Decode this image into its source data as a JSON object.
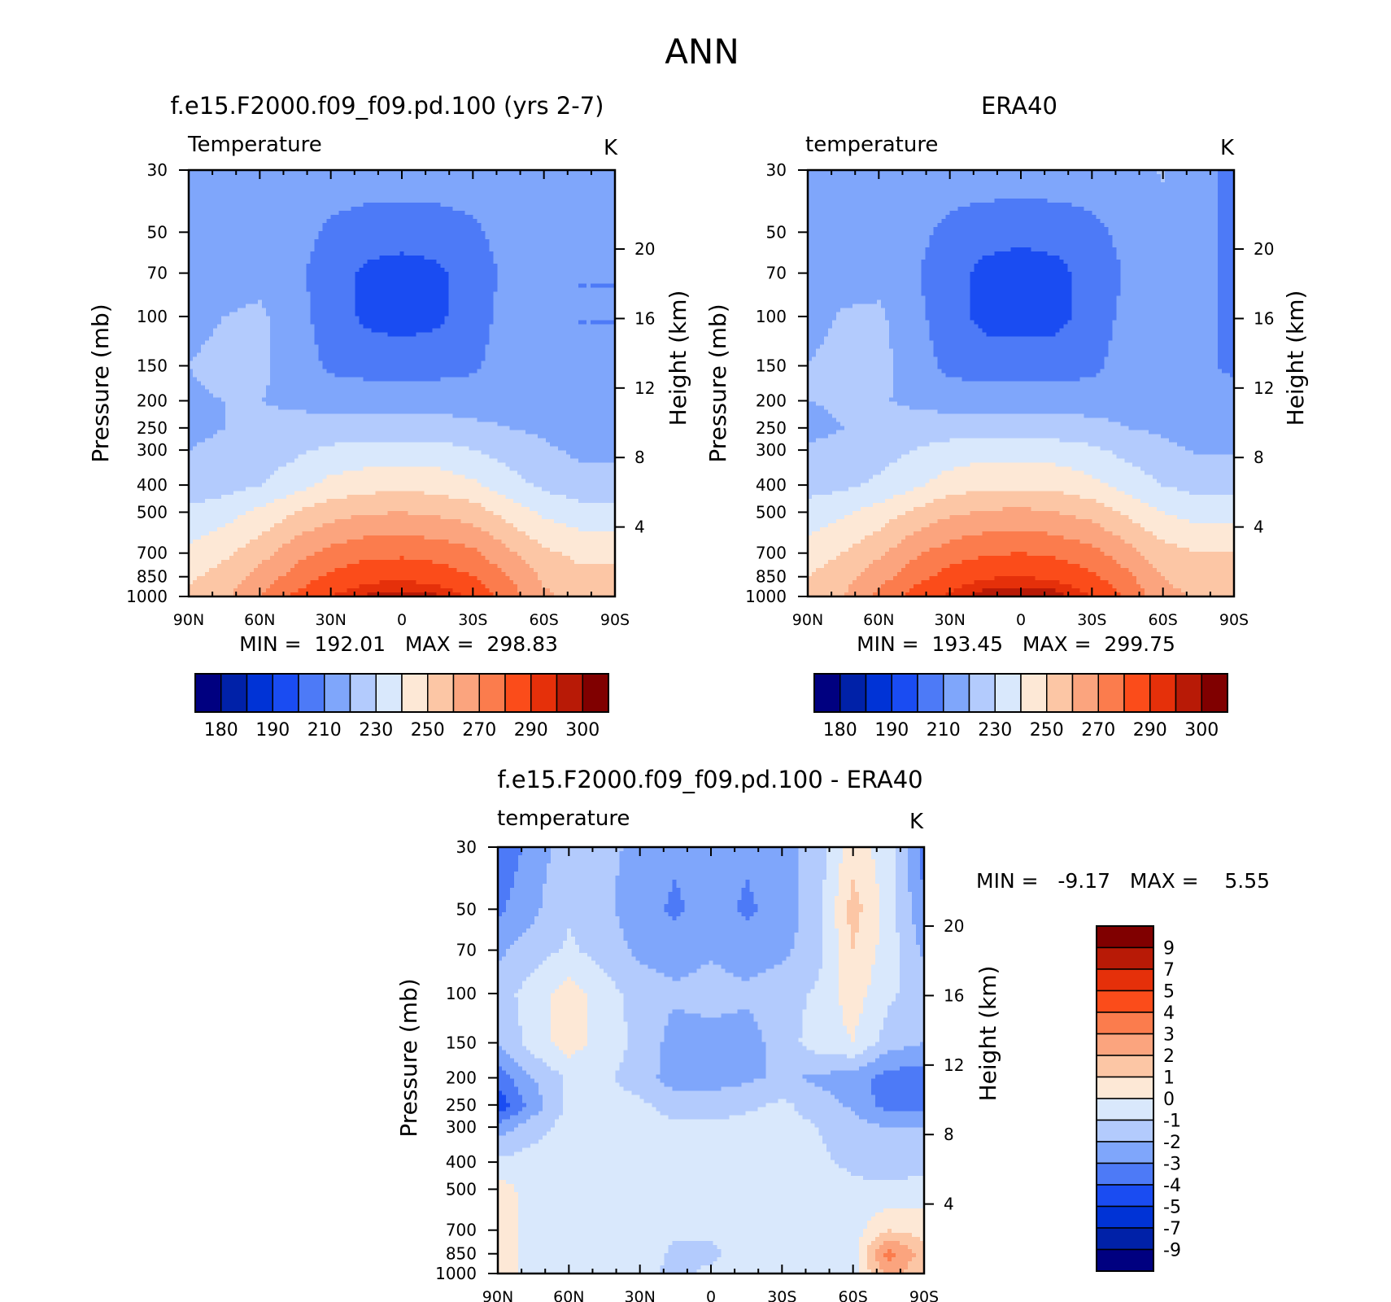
{
  "figure": {
    "title": "ANN"
  },
  "colors": {
    "abs_palette": [
      "#000080",
      "#0021a8",
      "#0033d6",
      "#1a4cf2",
      "#4d7af7",
      "#7fa6fb",
      "#b3cbfd",
      "#d9e8fc",
      "#fde8d6",
      "#fcc6a5",
      "#fba47e",
      "#fb7c4d",
      "#fb4c1a",
      "#e5300a",
      "#b81a06",
      "#800000"
    ],
    "diff_palette": [
      "#000080",
      "#0021a8",
      "#0033d6",
      "#1a4cf2",
      "#4d7af7",
      "#7fa6fb",
      "#b3cbfd",
      "#d9e8fc",
      "#fde8d6",
      "#fcc6a5",
      "#fba47e",
      "#fb7c4d",
      "#fb4c1a",
      "#e5300a",
      "#b81a06",
      "#800000"
    ]
  },
  "panels": [
    {
      "title": "f.e15.F2000.f09_f09.pd.100 (yrs 2-7)",
      "variable": "Temperature",
      "units": "K",
      "ylabel": "Pressure (mb)",
      "ylabel_right": "Height (km)",
      "minmax": "MIN =  192.01   MAX =  298.83",
      "colorbar_labels": [
        "180",
        "190",
        "210",
        "230",
        "250",
        "270",
        "290",
        "300"
      ]
    },
    {
      "title": "ERA40",
      "variable": "temperature",
      "units": "K",
      "ylabel": "Pressure (mb)",
      "ylabel_right": "Height (km)",
      "minmax": "MIN =  193.45   MAX =  299.75",
      "colorbar_labels": [
        "180",
        "190",
        "210",
        "230",
        "250",
        "270",
        "290",
        "300"
      ]
    },
    {
      "title": "f.e15.F2000.f09_f09.pd.100 - ERA40",
      "variable": "temperature",
      "units": "K",
      "ylabel": "Pressure (mb)",
      "ylabel_right": "Height (km)",
      "minmax": "MIN =   -9.17   MAX =    5.55",
      "colorbar_labels": [
        "9",
        "7",
        "5",
        "4",
        "3",
        "2",
        "1",
        "0",
        "-1",
        "-2",
        "-3",
        "-4",
        "-5",
        "-7",
        "-9"
      ]
    }
  ],
  "chart_data": [
    {
      "type": "heatmap",
      "title": "f.e15.F2000.f09_f09.pd.100 (yrs 2-7)",
      "subtitle": "Temperature",
      "units": "K",
      "ylabel": "Pressure (mb)",
      "ylabel_right": "Height (km)",
      "x_ticklabels": [
        "90N",
        "60N",
        "30N",
        "0",
        "30S",
        "60S",
        "90S"
      ],
      "y_ticklabels": [
        "30",
        "50",
        "70",
        "100",
        "150",
        "200",
        "250",
        "300",
        "400",
        "500",
        "700",
        "850",
        "1000"
      ],
      "y_ticklabels_right": [
        "20",
        "16",
        "12",
        "8",
        "4"
      ],
      "min": 192.01,
      "max": 298.83,
      "contour_levels": [
        180,
        185,
        190,
        200,
        210,
        220,
        230,
        240,
        250,
        260,
        270,
        280,
        290,
        295,
        300
      ],
      "colorbar_ticks": [
        180,
        190,
        210,
        230,
        250,
        270,
        290,
        300
      ],
      "y_scale": "log",
      "y_inverted": true,
      "field": {
        "lat": [
          90,
          75,
          60,
          45,
          30,
          15,
          0,
          -15,
          -30,
          -45,
          -60,
          -75,
          -90
        ],
        "pressure": [
          30,
          50,
          70,
          100,
          150,
          200,
          250,
          300,
          400,
          500,
          700,
          850,
          1000
        ],
        "values": [
          [
            216,
            216,
            216,
            216,
            216,
            216,
            216,
            216,
            216,
            216,
            216,
            210,
            210
          ],
          [
            216,
            216,
            216,
            214,
            208,
            205,
            204,
            205,
            208,
            214,
            216,
            210,
            210
          ],
          [
            216,
            216,
            216,
            212,
            205,
            198,
            196,
            198,
            205,
            212,
            216,
            210,
            210
          ],
          [
            216,
            220,
            222,
            214,
            205,
            198,
            196,
            198,
            205,
            214,
            216,
            210,
            210
          ],
          [
            220,
            224,
            222,
            216,
            208,
            206,
            205,
            206,
            208,
            216,
            216,
            210,
            210
          ],
          [
            218,
            220,
            220,
            218,
            216,
            216,
            216,
            216,
            216,
            216,
            216,
            210,
            210
          ],
          [
            218,
            220,
            222,
            224,
            224,
            224,
            224,
            224,
            222,
            220,
            218,
            212,
            212
          ],
          [
            220,
            222,
            224,
            228,
            232,
            234,
            234,
            234,
            230,
            226,
            222,
            218,
            218
          ],
          [
            224,
            226,
            230,
            236,
            243,
            246,
            247,
            246,
            242,
            234,
            228,
            224,
            224
          ],
          [
            232,
            236,
            242,
            250,
            256,
            259,
            260,
            258,
            255,
            246,
            238,
            234,
            234
          ],
          [
            242,
            248,
            256,
            266,
            273,
            277,
            278,
            276,
            272,
            262,
            252,
            248,
            248
          ],
          [
            248,
            254,
            264,
            274,
            282,
            287,
            288,
            286,
            280,
            270,
            258,
            252,
            252
          ],
          [
            252,
            258,
            270,
            282,
            290,
            296,
            298,
            296,
            288,
            276,
            262,
            256,
            256
          ]
        ]
      }
    },
    {
      "type": "heatmap",
      "title": "ERA40",
      "subtitle": "temperature",
      "units": "K",
      "ylabel": "Pressure (mb)",
      "ylabel_right": "Height (km)",
      "x_ticklabels": [
        "90N",
        "60N",
        "30N",
        "0",
        "30S",
        "60S",
        "90S"
      ],
      "y_ticklabels": [
        "30",
        "50",
        "70",
        "100",
        "150",
        "200",
        "250",
        "300",
        "400",
        "500",
        "700",
        "850",
        "1000"
      ],
      "y_ticklabels_right": [
        "20",
        "16",
        "12",
        "8",
        "4"
      ],
      "min": 193.45,
      "max": 299.75,
      "contour_levels": [
        180,
        185,
        190,
        200,
        210,
        220,
        230,
        240,
        250,
        260,
        270,
        280,
        290,
        295,
        300
      ],
      "colorbar_ticks": [
        180,
        190,
        210,
        230,
        250,
        270,
        290,
        300
      ],
      "y_scale": "log",
      "y_inverted": true,
      "field": {
        "lat": [
          90,
          75,
          60,
          45,
          30,
          15,
          0,
          -15,
          -30,
          -45,
          -60,
          -75,
          -90
        ],
        "pressure": [
          30,
          50,
          70,
          100,
          150,
          200,
          250,
          300,
          400,
          500,
          700,
          850,
          1000
        ],
        "values": [
          [
            216,
            216,
            216,
            216,
            216,
            216,
            216,
            216,
            216,
            216,
            221,
            212,
            208
          ],
          [
            216,
            216,
            216,
            213,
            207,
            204,
            203,
            204,
            207,
            213,
            216,
            212,
            208
          ],
          [
            216,
            216,
            216,
            211,
            204,
            197,
            195,
            197,
            204,
            211,
            216,
            212,
            208
          ],
          [
            216,
            221,
            222,
            213,
            204,
            197,
            196,
            197,
            204,
            213,
            216,
            212,
            208
          ],
          [
            220,
            224,
            223,
            216,
            207,
            205,
            205,
            205,
            207,
            216,
            216,
            212,
            208
          ],
          [
            220,
            222,
            221,
            218,
            216,
            216,
            216,
            216,
            216,
            216,
            216,
            214,
            214
          ],
          [
            216,
            220,
            222,
            225,
            225,
            225,
            224,
            224,
            223,
            220,
            218,
            214,
            214
          ],
          [
            222,
            224,
            226,
            230,
            234,
            236,
            236,
            235,
            232,
            227,
            223,
            219,
            219
          ],
          [
            226,
            228,
            232,
            238,
            245,
            248,
            248,
            247,
            243,
            236,
            230,
            226,
            226
          ],
          [
            234,
            238,
            244,
            252,
            258,
            261,
            262,
            260,
            256,
            248,
            240,
            236,
            236
          ],
          [
            244,
            250,
            258,
            268,
            275,
            279,
            280,
            278,
            273,
            264,
            254,
            250,
            250
          ],
          [
            250,
            256,
            266,
            276,
            284,
            289,
            290,
            288,
            282,
            272,
            260,
            254,
            254
          ],
          [
            254,
            260,
            272,
            284,
            292,
            298,
            300,
            298,
            290,
            278,
            264,
            258,
            258
          ]
        ]
      }
    },
    {
      "type": "heatmap",
      "title": "f.e15.F2000.f09_f09.pd.100 - ERA40",
      "subtitle": "temperature",
      "units": "K",
      "ylabel": "Pressure (mb)",
      "ylabel_right": "Height (km)",
      "x_ticklabels": [
        "90N",
        "60N",
        "30N",
        "0",
        "30S",
        "60S",
        "90S"
      ],
      "y_ticklabels": [
        "30",
        "50",
        "70",
        "100",
        "150",
        "200",
        "250",
        "300",
        "400",
        "500",
        "700",
        "850",
        "1000"
      ],
      "y_ticklabels_right": [
        "20",
        "16",
        "12",
        "8",
        "4"
      ],
      "min": -9.17,
      "max": 5.55,
      "contour_levels": [
        -9,
        -7,
        -5,
        -4,
        -3,
        -2,
        -1,
        0,
        1,
        2,
        3,
        4,
        5,
        7,
        9
      ],
      "colorbar_ticks": [
        9,
        7,
        5,
        4,
        3,
        2,
        1,
        0,
        -1,
        -2,
        -3,
        -4,
        -5,
        -7,
        -9
      ],
      "y_scale": "log",
      "y_inverted": true,
      "field": {
        "lat": [
          90,
          75,
          60,
          45,
          30,
          15,
          0,
          -15,
          -30,
          -45,
          -60,
          -75,
          -90
        ],
        "pressure": [
          30,
          50,
          70,
          100,
          150,
          200,
          250,
          300,
          400,
          500,
          700,
          850,
          1000
        ],
        "values": [
          [
            -4.0,
            -2.5,
            -1.5,
            -1.8,
            -2.2,
            -2.8,
            -2.0,
            -2.8,
            -2.5,
            -1.5,
            0.5,
            -0.5,
            -3.5
          ],
          [
            -3.2,
            -2.2,
            -1.2,
            -1.8,
            -2.5,
            -3.2,
            -2.5,
            -3.2,
            -2.5,
            -1.5,
            1.5,
            -0.5,
            -2.8
          ],
          [
            -2.2,
            -1.5,
            -0.8,
            -1.5,
            -2.2,
            -2.5,
            -2.2,
            -2.5,
            -2.2,
            -1.5,
            1.0,
            -0.5,
            -2.2
          ],
          [
            -1.5,
            -0.5,
            0.5,
            -0.5,
            -1.5,
            -1.8,
            -1.5,
            -1.8,
            -1.5,
            -0.8,
            0.5,
            -0.8,
            -1.5
          ],
          [
            -2.0,
            -0.5,
            0.5,
            -0.5,
            -1.2,
            -2.5,
            -2.5,
            -2.5,
            -1.5,
            -0.5,
            0.0,
            -1.5,
            -2.0
          ],
          [
            -3.5,
            -2.0,
            -0.8,
            -0.8,
            -1.5,
            -2.5,
            -2.5,
            -2.2,
            -1.8,
            -2.2,
            -2.5,
            -3.5,
            -3.5
          ],
          [
            -4.8,
            -2.5,
            -0.8,
            -0.5,
            -0.8,
            -1.5,
            -1.5,
            -1.2,
            -0.8,
            -1.5,
            -2.2,
            -3.5,
            -3.5
          ],
          [
            -2.5,
            -1.5,
            -0.5,
            -0.5,
            -0.5,
            -0.8,
            -0.8,
            -0.6,
            -0.5,
            -1.0,
            -1.5,
            -2.0,
            -2.0
          ],
          [
            -0.8,
            -0.5,
            -0.5,
            -0.5,
            -0.5,
            -0.5,
            -0.5,
            -0.5,
            -0.5,
            -0.8,
            -1.2,
            -1.5,
            -1.5
          ],
          [
            0.5,
            -0.5,
            -0.5,
            -0.5,
            -0.5,
            -0.5,
            -0.5,
            -0.5,
            -0.5,
            -0.5,
            -0.8,
            -0.8,
            -0.5
          ],
          [
            0.8,
            -0.5,
            -0.5,
            -0.5,
            -0.5,
            -0.8,
            -0.8,
            -0.5,
            -0.5,
            -0.5,
            -0.5,
            1.0,
            0.5
          ],
          [
            0.8,
            -0.5,
            -0.5,
            -0.5,
            -0.5,
            -1.2,
            -1.2,
            -0.5,
            -0.5,
            -0.5,
            -0.5,
            3.5,
            1.5
          ],
          [
            0.5,
            -0.5,
            -0.5,
            -0.8,
            -0.8,
            -1.2,
            -0.8,
            -0.6,
            -0.5,
            -0.5,
            -0.5,
            2.5,
            1.0
          ]
        ]
      }
    }
  ]
}
